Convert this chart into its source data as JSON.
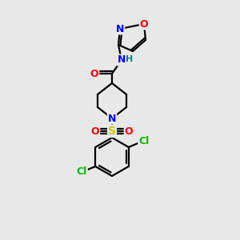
{
  "bg_color": "#e8e8e8",
  "bond_color": "#000000",
  "atom_colors": {
    "O": "#ff0000",
    "N": "#0000ff",
    "S": "#cccc00",
    "Cl": "#00bb00",
    "C": "#000000",
    "H": "#008080"
  },
  "figsize": [
    3.0,
    3.0
  ],
  "dpi": 100,
  "lw": 1.6
}
